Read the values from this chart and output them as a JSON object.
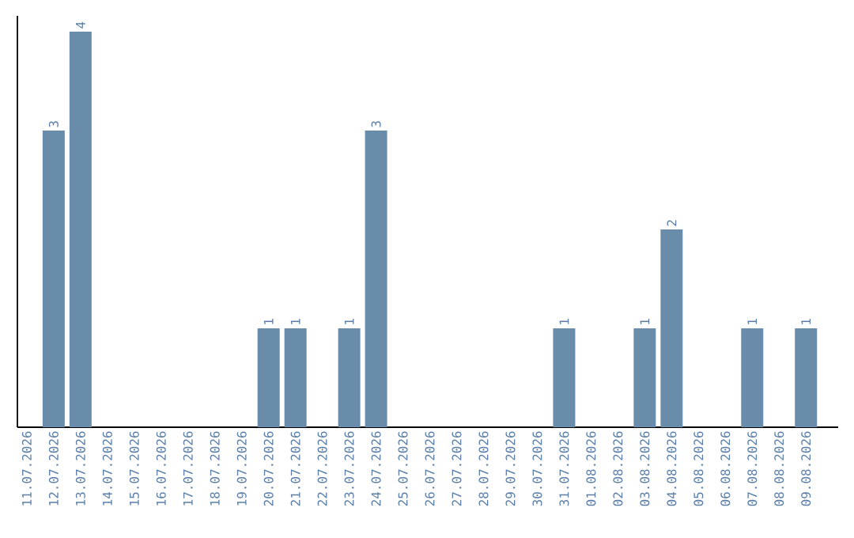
{
  "chart_data": {
    "type": "bar",
    "categories": [
      "11.07.2026",
      "12.07.2026",
      "13.07.2026",
      "14.07.2026",
      "15.07.2026",
      "16.07.2026",
      "17.07.2026",
      "18.07.2026",
      "19.07.2026",
      "20.07.2026",
      "21.07.2026",
      "22.07.2026",
      "23.07.2026",
      "24.07.2026",
      "25.07.2026",
      "26.07.2026",
      "27.07.2026",
      "28.07.2026",
      "29.07.2026",
      "30.07.2026",
      "31.07.2026",
      "01.08.2026",
      "02.08.2026",
      "03.08.2026",
      "04.08.2026",
      "05.08.2026",
      "06.08.2026",
      "07.08.2026",
      "08.08.2026",
      "09.08.2026"
    ],
    "values": [
      0,
      3,
      4,
      0,
      0,
      0,
      0,
      0,
      0,
      1,
      1,
      0,
      1,
      3,
      0,
      0,
      0,
      0,
      0,
      0,
      1,
      0,
      0,
      1,
      2,
      0,
      0,
      1,
      0,
      1
    ],
    "value_labels": [
      null,
      "3",
      "4",
      null,
      null,
      null,
      null,
      null,
      null,
      "1",
      "1",
      null,
      "1",
      "3",
      null,
      null,
      null,
      null,
      null,
      null,
      "1",
      null,
      null,
      "1",
      "2",
      null,
      null,
      "1",
      null,
      "1"
    ],
    "color": "#6a8cab",
    "ylim": [
      0,
      4.16
    ],
    "tick_labels": "x"
  }
}
